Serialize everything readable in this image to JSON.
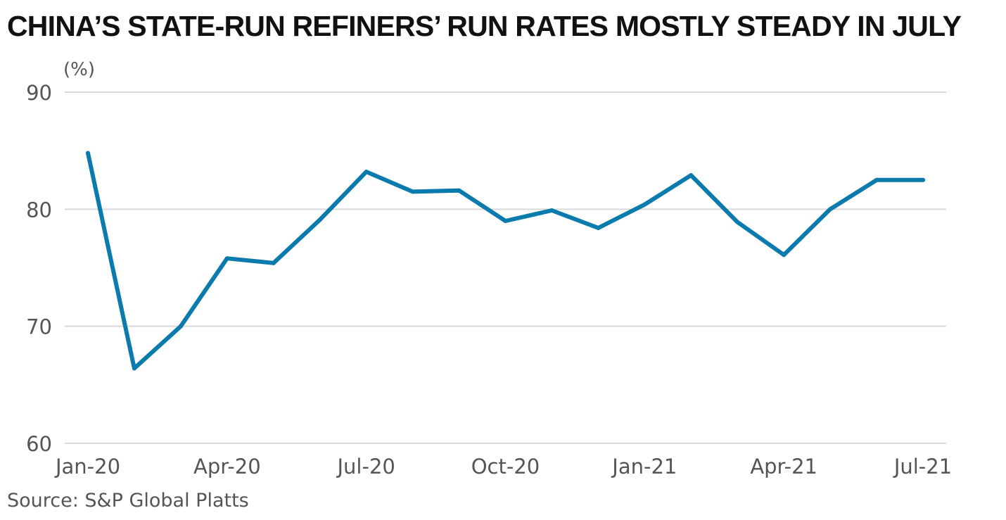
{
  "title": "CHINA’S STATE-RUN REFINERS’ RUN RATES MOSTLY STEADY IN JULY",
  "source": "Source: S&P Global Platts",
  "chart_data": {
    "type": "line",
    "title": "CHINA’S STATE-RUN REFINERS’ RUN RATES MOSTLY STEADY IN JULY",
    "ylabel": "(%)",
    "xlabel": "",
    "ylim": [
      60,
      90
    ],
    "yticks": [
      90,
      80,
      70,
      60
    ],
    "x": [
      "Jan-20",
      "Feb-20",
      "Mar-20",
      "Apr-20",
      "May-20",
      "Jun-20",
      "Jul-20",
      "Aug-20",
      "Sep-20",
      "Oct-20",
      "Nov-20",
      "Dec-20",
      "Jan-21",
      "Feb-21",
      "Mar-21",
      "Apr-21",
      "May-21",
      "Jun-21",
      "Jul-21"
    ],
    "xtick_labels": [
      "Jan-20",
      "Apr-20",
      "Jul-20",
      "Oct-20",
      "Jan-21",
      "Apr-21",
      "Jul-21"
    ],
    "series": [
      {
        "color": "#0a7bac",
        "values": [
          84.8,
          66.4,
          70.0,
          75.8,
          75.4,
          79.1,
          83.2,
          81.5,
          81.6,
          79.0,
          79.9,
          78.4,
          80.4,
          82.9,
          78.9,
          76.1,
          80.0,
          82.5,
          82.5
        ]
      }
    ],
    "grid": true,
    "legend": "none"
  }
}
